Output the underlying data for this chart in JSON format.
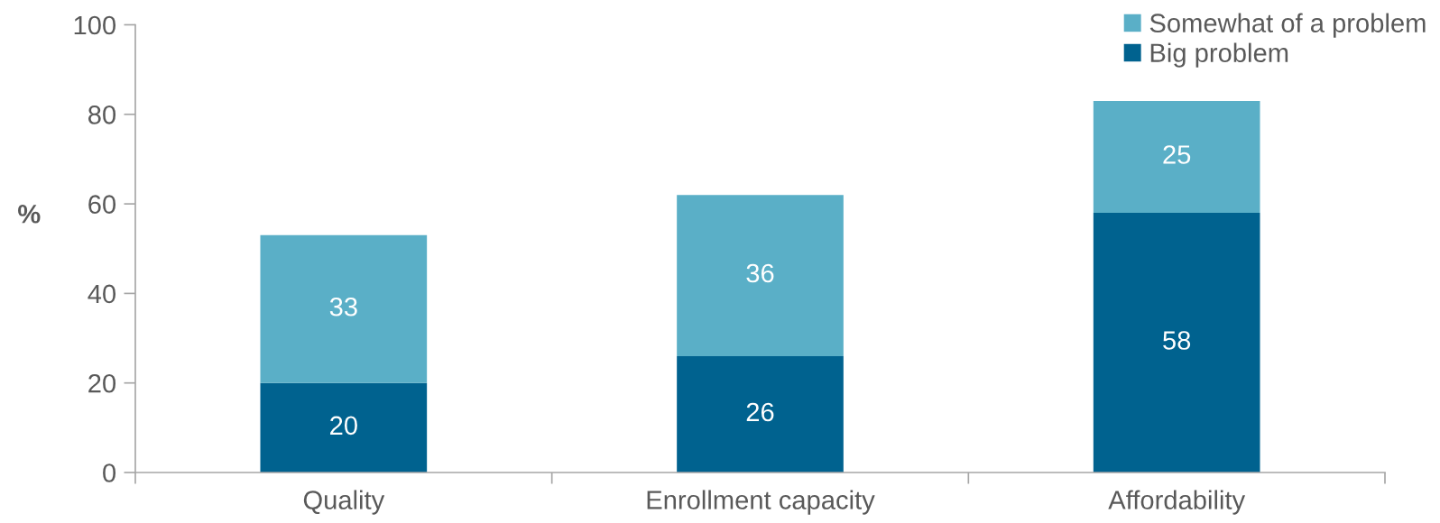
{
  "chart_data": {
    "type": "bar",
    "stacked": true,
    "categories": [
      "Quality",
      "Enrollment capacity",
      "Affordability"
    ],
    "series": [
      {
        "name": "Big problem",
        "color": "#00628f",
        "values": [
          20,
          26,
          58
        ]
      },
      {
        "name": "Somewhat of a problem",
        "color": "#5aafc7",
        "values": [
          33,
          36,
          25
        ]
      }
    ],
    "ylabel": "%",
    "ylim": [
      0,
      100
    ],
    "yticks": [
      0,
      20,
      40,
      60,
      80,
      100
    ],
    "data_labels": true,
    "legend": "top right",
    "grid": false
  }
}
